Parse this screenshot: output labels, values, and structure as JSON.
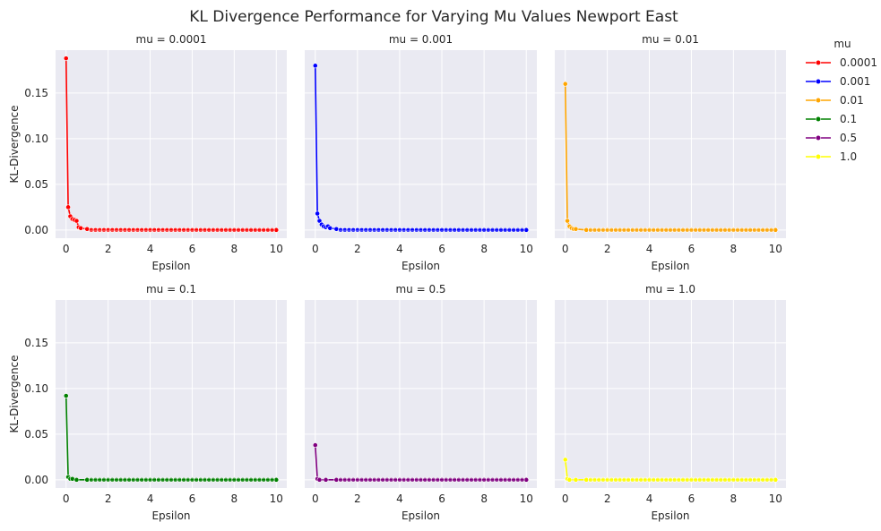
{
  "figure": {
    "title": "KL Divergence Performance for Varying Mu Values Newport East"
  },
  "legend": {
    "title": "mu",
    "entries": [
      {
        "label": "0.0001",
        "color": "#ff0000"
      },
      {
        "label": "0.001",
        "color": "#0000ff"
      },
      {
        "label": "0.01",
        "color": "#ffa500"
      },
      {
        "label": "0.1",
        "color": "#008000"
      },
      {
        "label": "0.5",
        "color": "#800080"
      },
      {
        "label": "1.0",
        "color": "#ffff00"
      }
    ]
  },
  "chart_data": [
    {
      "type": "line",
      "title": "mu = 0.0001",
      "xlabel": "Epsilon",
      "ylabel": "KL-Divergence",
      "xlim": [
        -0.5,
        10.5
      ],
      "ylim": [
        -0.009,
        0.197
      ],
      "xticks": [
        0,
        2,
        4,
        6,
        8,
        10
      ],
      "yticks": [
        0.0,
        0.05,
        0.1,
        0.15
      ],
      "grid": true,
      "color": "#ff0000",
      "series": [
        {
          "x": [
            0,
            0.1,
            0.2,
            0.3,
            0.4,
            0.5,
            0.6,
            0.7,
            1.0,
            10.0
          ],
          "y": [
            0.188,
            0.025,
            0.015,
            0.012,
            0.011,
            0.01,
            0.003,
            0.002,
            0.001,
            0.0
          ]
        }
      ]
    },
    {
      "type": "line",
      "title": "mu = 0.001",
      "xlabel": "Epsilon",
      "ylabel": "",
      "xlim": [
        -0.5,
        10.5
      ],
      "ylim": [
        -0.009,
        0.197
      ],
      "xticks": [
        0,
        2,
        4,
        6,
        8,
        10
      ],
      "yticks": [],
      "grid": true,
      "color": "#0000ff",
      "series": [
        {
          "x": [
            0,
            0.1,
            0.2,
            0.3,
            0.4,
            0.5,
            0.6,
            0.7,
            1.0,
            10.0
          ],
          "y": [
            0.18,
            0.018,
            0.01,
            0.006,
            0.004,
            0.003,
            0.004,
            0.002,
            0.001,
            0.0
          ]
        }
      ]
    },
    {
      "type": "line",
      "title": "mu = 0.01",
      "xlabel": "Epsilon",
      "ylabel": "",
      "xlim": [
        -0.5,
        10.5
      ],
      "ylim": [
        -0.009,
        0.197
      ],
      "xticks": [
        0,
        2,
        4,
        6,
        8,
        10
      ],
      "yticks": [],
      "grid": true,
      "color": "#ffa500",
      "series": [
        {
          "x": [
            0,
            0.1,
            0.2,
            0.3,
            0.4,
            0.5,
            1.0,
            10.0
          ],
          "y": [
            0.16,
            0.01,
            0.004,
            0.002,
            0.001,
            0.001,
            0.0,
            0.0
          ]
        }
      ]
    },
    {
      "type": "line",
      "title": "mu = 0.1",
      "xlabel": "Epsilon",
      "ylabel": "KL-Divergence",
      "xlim": [
        -0.5,
        10.5
      ],
      "ylim": [
        -0.009,
        0.197
      ],
      "xticks": [
        0,
        2,
        4,
        6,
        8,
        10
      ],
      "yticks": [
        0.0,
        0.05,
        0.1,
        0.15
      ],
      "grid": true,
      "color": "#008000",
      "series": [
        {
          "x": [
            0,
            0.1,
            0.2,
            0.3,
            0.5,
            1.0,
            10.0
          ],
          "y": [
            0.092,
            0.003,
            0.001,
            0.001,
            0.0,
            0.0,
            0.0
          ]
        }
      ]
    },
    {
      "type": "line",
      "title": "mu = 0.5",
      "xlabel": "Epsilon",
      "ylabel": "",
      "xlim": [
        -0.5,
        10.5
      ],
      "ylim": [
        -0.009,
        0.197
      ],
      "xticks": [
        0,
        2,
        4,
        6,
        8,
        10
      ],
      "yticks": [],
      "grid": true,
      "color": "#800080",
      "series": [
        {
          "x": [
            0,
            0.1,
            0.2,
            0.5,
            1.0,
            10.0
          ],
          "y": [
            0.038,
            0.001,
            0.0,
            0.0,
            0.0,
            0.0
          ]
        }
      ]
    },
    {
      "type": "line",
      "title": "mu = 1.0",
      "xlabel": "Epsilon",
      "ylabel": "",
      "xlim": [
        -0.5,
        10.5
      ],
      "ylim": [
        -0.009,
        0.197
      ],
      "xticks": [
        0,
        2,
        4,
        6,
        8,
        10
      ],
      "yticks": [],
      "grid": true,
      "color": "#ffff00",
      "series": [
        {
          "x": [
            0,
            0.1,
            0.2,
            0.5,
            1.0,
            10.0
          ],
          "y": [
            0.022,
            0.001,
            0.0,
            0.0,
            0.0,
            0.0
          ]
        }
      ]
    }
  ]
}
